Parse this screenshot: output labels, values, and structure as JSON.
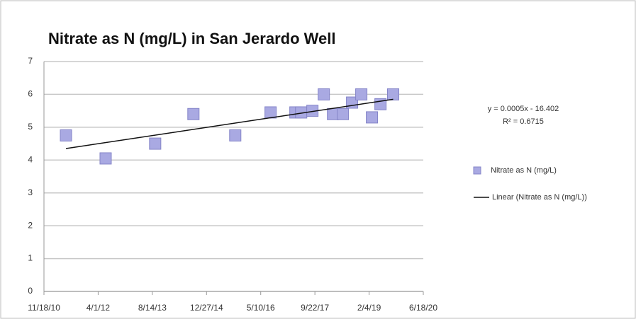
{
  "chart_data": {
    "type": "scatter",
    "title": "Nitrate as N (mg/L) in San Jerardo Well",
    "annotations": [
      "y = 0.0005x - 16.402",
      "R² = 0.6715"
    ],
    "xlim": [
      40500,
      44000
    ],
    "xticks": [
      {
        "value": 40500,
        "label": "11/18/10"
      },
      {
        "value": 41000,
        "label": "4/1/12"
      },
      {
        "value": 41500,
        "label": "8/14/13"
      },
      {
        "value": 42000,
        "label": "12/27/14"
      },
      {
        "value": 42500,
        "label": "5/10/16"
      },
      {
        "value": 43000,
        "label": "9/22/17"
      },
      {
        "value": 43500,
        "label": "2/4/19"
      },
      {
        "value": 44000,
        "label": "6/18/20"
      }
    ],
    "ylim": [
      0,
      7
    ],
    "yticks": [
      0,
      1,
      2,
      3,
      4,
      5,
      6,
      7
    ],
    "grid": true,
    "legend": "right",
    "series": [
      {
        "name": "Nitrate as N (mg/L)",
        "color": "#a9a9e2",
        "marker": "square",
        "x": [
          40703,
          41069,
          41526,
          41879,
          42265,
          42591,
          42820,
          42873,
          42977,
          43082,
          43167,
          43258,
          43343,
          43428,
          43526,
          43605,
          43722
        ],
        "values": [
          4.75,
          4.05,
          4.5,
          5.4,
          4.75,
          5.45,
          5.45,
          5.45,
          5.5,
          6.0,
          5.4,
          5.4,
          5.75,
          6.0,
          5.3,
          5.7,
          6.0
        ]
      },
      {
        "name": "Linear (Nitrate as N (mg/L))",
        "color": "#111111",
        "marker": "line",
        "x": [
          40703,
          43722
        ],
        "values": [
          4.35,
          5.85
        ]
      }
    ]
  }
}
